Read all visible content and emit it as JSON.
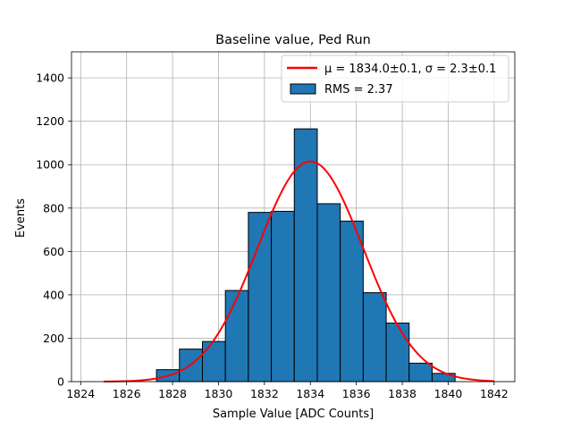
{
  "chart_data": {
    "type": "bar",
    "title": "Baseline value, Ped Run",
    "xlabel": "Sample Value [ADC Counts]",
    "ylabel": "Events",
    "xlim": [
      1823.6,
      1842.9
    ],
    "ylim": [
      0,
      1520
    ],
    "grid": true,
    "legend_position": "upper right",
    "x_ticks": [
      1824,
      1826,
      1828,
      1830,
      1832,
      1834,
      1836,
      1838,
      1840,
      1842
    ],
    "y_ticks": [
      0,
      200,
      400,
      600,
      800,
      1000,
      1200,
      1400
    ],
    "bin_edges": [
      1827.3,
      1828.3,
      1829.3,
      1830.3,
      1831.3,
      1832.3,
      1833.3,
      1834.3,
      1835.3,
      1836.3,
      1837.3,
      1838.3,
      1839.3,
      1840.3
    ],
    "counts": [
      55,
      150,
      185,
      420,
      780,
      785,
      1165,
      820,
      740,
      410,
      270,
      85,
      38
    ],
    "bar_color": "#1f77b4",
    "bar_edge_color": "#000000",
    "fit": {
      "mu": 1834.0,
      "sigma": 2.3,
      "amplitude": 1015,
      "x_range": [
        1825,
        1842
      ],
      "color": "#ff0000"
    },
    "legend": [
      {
        "type": "line",
        "label": "μ = 1834.0±0.1, σ = 2.3±0.1",
        "color": "#ff0000"
      },
      {
        "type": "patch",
        "label": "RMS = 2.37",
        "color": "#1f77b4"
      }
    ]
  }
}
